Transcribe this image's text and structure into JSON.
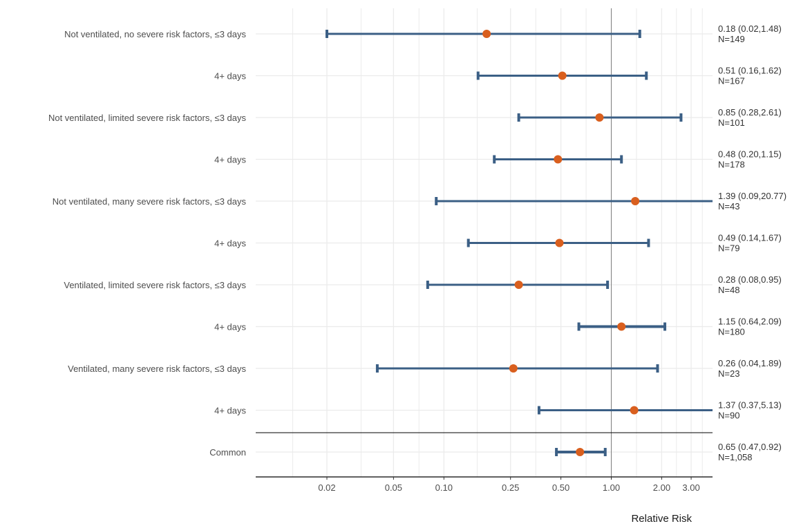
{
  "chart_data": {
    "type": "forest",
    "xlabel": "Relative Risk",
    "xscale": "log",
    "xlim": [
      0.01,
      4.0
    ],
    "reference_line": 1.0,
    "grid": true,
    "x_ticks": [
      {
        "value": 0.02,
        "label": "0.02"
      },
      {
        "value": 0.05,
        "label": "0.05"
      },
      {
        "value": 0.1,
        "label": "0.10"
      },
      {
        "value": 0.25,
        "label": "0.25"
      },
      {
        "value": 0.5,
        "label": "0.50"
      },
      {
        "value": 1.0,
        "label": "1.00"
      },
      {
        "value": 2.0,
        "label": "2.00"
      },
      {
        "value": 3.0,
        "label": "3.00"
      }
    ],
    "colors": {
      "ci": "#3b5f85",
      "point": "#d95f1e",
      "grid": "#ebebeb",
      "refline": "#808080",
      "axis": "#000000"
    },
    "rows": [
      {
        "label": "Not ventilated, no severe risk factors, ≤3 days",
        "estimate": 0.18,
        "lower": 0.02,
        "upper": 1.48,
        "estimate_text": "0.18 (0.02,1.48)",
        "n_text": "N=149"
      },
      {
        "label": "4+ days",
        "estimate": 0.51,
        "lower": 0.16,
        "upper": 1.62,
        "estimate_text": "0.51 (0.16,1.62)",
        "n_text": "N=167"
      },
      {
        "label": "Not ventilated, limited severe risk factors, ≤3 days",
        "estimate": 0.85,
        "lower": 0.28,
        "upper": 2.61,
        "estimate_text": "0.85 (0.28,2.61)",
        "n_text": "N=101"
      },
      {
        "label": "4+ days",
        "estimate": 0.48,
        "lower": 0.2,
        "upper": 1.15,
        "estimate_text": "0.48 (0.20,1.15)",
        "n_text": "N=178"
      },
      {
        "label": "Not ventilated, many severe risk factors, ≤3 days",
        "estimate": 1.39,
        "lower": 0.09,
        "upper": 20.77,
        "estimate_text": "1.39 (0.09,20.77)",
        "n_text": "N=43"
      },
      {
        "label": "4+ days",
        "estimate": 0.49,
        "lower": 0.14,
        "upper": 1.67,
        "estimate_text": "0.49 (0.14,1.67)",
        "n_text": "N=79"
      },
      {
        "label": "Ventilated, limited severe risk factors, ≤3 days",
        "estimate": 0.28,
        "lower": 0.08,
        "upper": 0.95,
        "estimate_text": "0.28 (0.08,0.95)",
        "n_text": "N=48"
      },
      {
        "label": "4+ days",
        "estimate": 1.15,
        "lower": 0.64,
        "upper": 2.09,
        "estimate_text": "1.15 (0.64,2.09)",
        "n_text": "N=180"
      },
      {
        "label": "Ventilated, many severe risk factors, ≤3 days",
        "estimate": 0.26,
        "lower": 0.04,
        "upper": 1.89,
        "estimate_text": "0.26 (0.04,1.89)",
        "n_text": "N=23"
      },
      {
        "label": "4+ days",
        "estimate": 1.37,
        "lower": 0.37,
        "upper": 5.13,
        "estimate_text": "1.37 (0.37,5.13)",
        "n_text": "N=90"
      },
      {
        "label": "Common",
        "estimate": 0.65,
        "lower": 0.47,
        "upper": 0.92,
        "estimate_text": "0.65 (0.47,0.92)",
        "n_text": "N=1,058"
      }
    ]
  }
}
